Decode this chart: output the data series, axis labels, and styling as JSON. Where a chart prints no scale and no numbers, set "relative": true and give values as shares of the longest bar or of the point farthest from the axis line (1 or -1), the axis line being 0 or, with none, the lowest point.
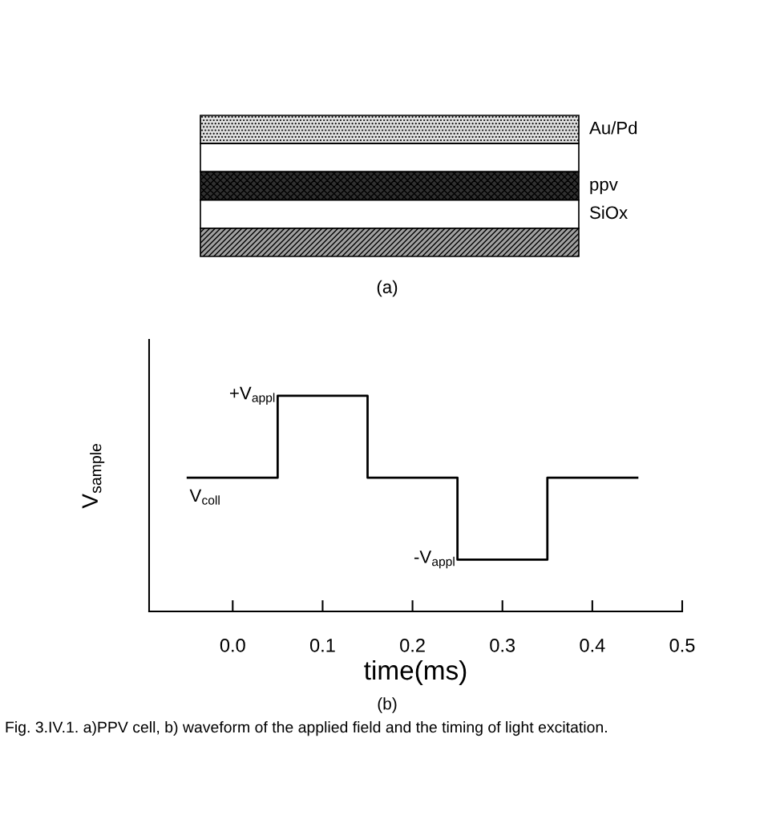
{
  "chart_data": {
    "type": "step",
    "relative": true,
    "tick_labels": "x",
    "xlabel": "time(ms)",
    "ylabel": "V$_{sample}$",
    "x": [
      -0.05,
      0.05,
      0.15,
      0.25,
      0.35,
      0.45
    ],
    "series": [
      {
        "color": "#000000",
        "values": [
          0.62,
          1.0,
          0.62,
          0.24,
          0.62,
          0.62
        ]
      }
    ],
    "xlim": [
      -0.093,
      0.5
    ],
    "xticks": [
      {
        "value": 0,
        "label": "0.0"
      },
      0.1,
      0.2,
      0.3,
      0.4,
      0.5
    ],
    "annotations": [
      {
        "text": "+V$_{appl}$",
        "x": 0.05,
        "y": 1.0
      },
      {
        "text": "V$_{coll}$",
        "x": -0.05,
        "y": 0.62
      },
      {
        "text": "-V$_{appl}$",
        "x": 0.25,
        "y": 0.24
      },
      "Au/Pd",
      "ppv",
      "SiOx",
      "(a)",
      "(b)",
      "Fig. 3.IV.1. a)PPV cell, b) waveform of the applied field and the timing of light excitation."
    ]
  }
}
